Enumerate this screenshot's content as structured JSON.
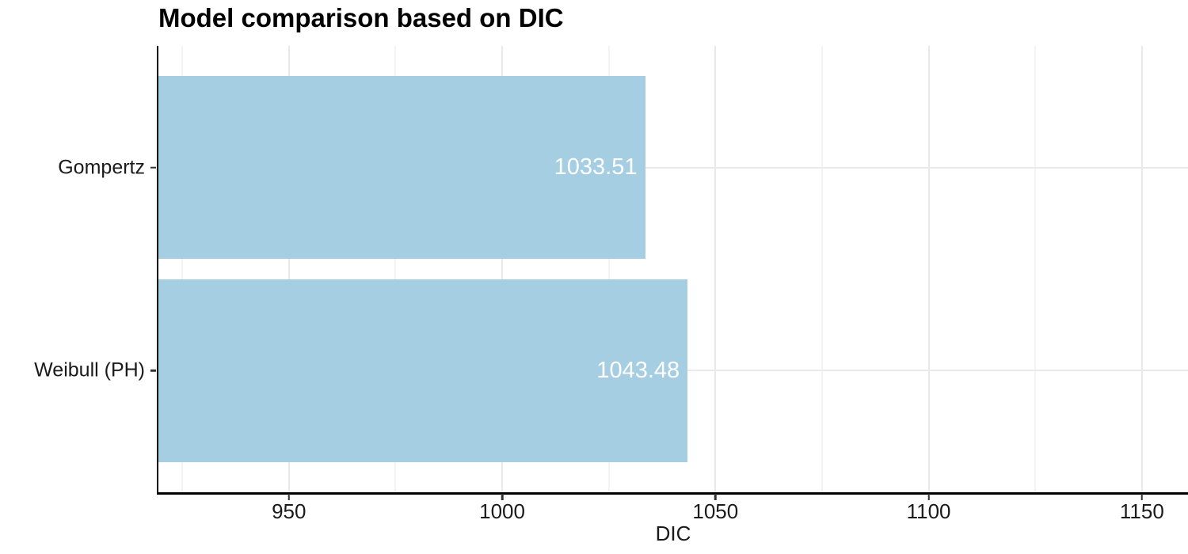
{
  "chart_data": {
    "type": "bar",
    "orientation": "horizontal",
    "title": "Model comparison based on DIC",
    "categories": [
      "Gompertz",
      "Weibull (PH)"
    ],
    "values": [
      1033.51,
      1043.48
    ],
    "value_labels": [
      "1033.51",
      "1043.48"
    ],
    "xlabel": "DIC",
    "ylabel": "",
    "xlim": [
      919.4,
      1160.8
    ],
    "x_major_ticks": [
      950,
      1000,
      1050,
      1100,
      1150
    ],
    "x_minor_gridlines": [
      925,
      975,
      1025,
      1075,
      1125
    ],
    "grid": "vertical major+minor, horizontal major at category centers",
    "legend": "none",
    "colors": {
      "bar_fill": "#A6CEE3",
      "value_label": "#FFFFFF",
      "grid_major": "#E9E9E9",
      "grid_minor": "#F3F3F3",
      "axis_line": "#000000",
      "tick_mark": "#333333",
      "tick_label": "#1A1A1A",
      "title": "#000000"
    }
  }
}
